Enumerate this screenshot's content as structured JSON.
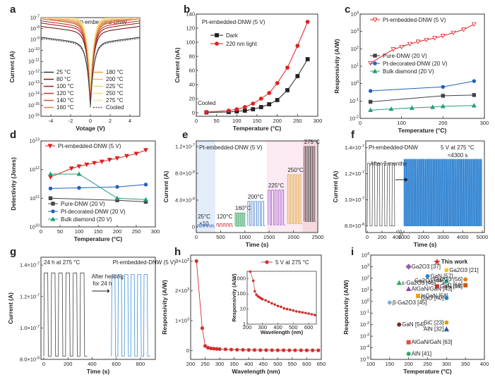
{
  "figure": {
    "panel_labels": [
      "a",
      "b",
      "c",
      "d",
      "e",
      "f",
      "g",
      "h",
      "i"
    ]
  },
  "chart_data": [
    {
      "panel": "a",
      "type": "line",
      "title": "Pt-embedded-DNW",
      "xlabel": "Votage (V)",
      "ylabel": "Current (A)",
      "xlim": [
        -5,
        5
      ],
      "ylim_log10": [
        -16,
        -7
      ],
      "x_ticks": [
        "-4",
        "-2",
        "0",
        "2",
        "4"
      ],
      "y_ticks": [
        "10^-16",
        "10^-15",
        "10^-14",
        "10^-13",
        "10^-12",
        "10^-11",
        "10^-10",
        "10^-9",
        "10^-8",
        "10^-7"
      ],
      "series": [
        {
          "name": "25 °C",
          "color": "#333333",
          "plateau_log10": -9.4,
          "dip_log10": -15.0
        },
        {
          "name": "80 °C",
          "color": "#7a1a1a",
          "plateau_log10": -8.4,
          "dip_log10": -14.5
        },
        {
          "name": "100 °C",
          "color": "#a52020",
          "plateau_log10": -8.1,
          "dip_log10": -14.3
        },
        {
          "name": "120 °C",
          "color": "#c0392b",
          "plateau_log10": -7.9,
          "dip_log10": -14.1
        },
        {
          "name": "140 °C",
          "color": "#d65a3a",
          "plateau_log10": -7.7,
          "dip_log10": -13.9
        },
        {
          "name": "160 °C",
          "color": "#e07a40",
          "plateau_log10": -7.6,
          "dip_log10": -13.8
        },
        {
          "name": "180 °C",
          "color": "#e89a4a",
          "plateau_log10": -7.5,
          "dip_log10": -13.6
        },
        {
          "name": "200 °C",
          "color": "#efb85a",
          "plateau_log10": -7.4,
          "dip_log10": -13.4
        },
        {
          "name": "225 °C",
          "color": "#f4cd6a",
          "plateau_log10": -7.3,
          "dip_log10": -13.2
        },
        {
          "name": "250 °C",
          "color": "#f7dc82",
          "plateau_log10": -7.2,
          "dip_log10": -13.0
        },
        {
          "name": "275 °C",
          "color": "#f9e79f",
          "plateau_log10": -7.1,
          "dip_log10": -12.8
        },
        {
          "name": "Cooled",
          "color": "#555555",
          "plateau_log10": -9.5,
          "dip_log10": -15.2,
          "dashed": true
        }
      ]
    },
    {
      "panel": "b",
      "type": "line",
      "title": "Pt-embedded-DNW (5 V)",
      "xlabel": "Temperature (°C)",
      "ylabel": "Current (nA)",
      "xlim": [
        0,
        300
      ],
      "ylim": [
        -5,
        140
      ],
      "x_ticks": [
        "0",
        "50",
        "100",
        "150",
        "200",
        "250",
        "300"
      ],
      "y_ticks": [
        "0",
        "20",
        "40",
        "60",
        "80",
        "100",
        "120",
        "140"
      ],
      "annotation": "Cooled",
      "series": [
        {
          "name": "Dark",
          "color": "#222222",
          "marker": "square",
          "x": [
            25,
            80,
            100,
            120,
            140,
            160,
            180,
            200,
            225,
            250,
            275
          ],
          "y": [
            0.5,
            1,
            2,
            3,
            5,
            8,
            12,
            18,
            32,
            52,
            76
          ]
        },
        {
          "name": "220 nm light",
          "color": "#e02020",
          "marker": "circle",
          "x": [
            25,
            80,
            100,
            120,
            140,
            160,
            180,
            200,
            225,
            250,
            275
          ],
          "y": [
            1,
            3,
            5,
            8,
            13,
            20,
            28,
            42,
            64,
            95,
            129
          ]
        }
      ]
    },
    {
      "panel": "c",
      "type": "line",
      "xlabel": "Temperature (°C)",
      "ylabel": "Responsivity (A/W)",
      "xlim": [
        0,
        300
      ],
      "ylim_log10": [
        -2,
        4
      ],
      "x_ticks": [
        "0",
        "100",
        "200",
        "300"
      ],
      "y_ticks": [
        "10^-2",
        "10^-1",
        "10^0",
        "10^1",
        "10^2",
        "10^3",
        "10^4"
      ],
      "series": [
        {
          "name": "Pt-embedded-DNW (5 V)",
          "color": "#e02020",
          "marker": "triangle-down",
          "x": [
            25,
            80,
            100,
            120,
            140,
            160,
            180,
            200,
            225,
            250,
            275
          ],
          "y": [
            15,
            95,
            130,
            190,
            260,
            330,
            420,
            560,
            850,
            1300,
            2600
          ]
        },
        {
          "name": "Pure-DNW (20 V)",
          "color": "#444444",
          "marker": "square",
          "x": [
            25,
            200,
            275
          ],
          "y": [
            0.09,
            0.2,
            0.22
          ]
        },
        {
          "name": "Pt-decorated-DNW (20 V)",
          "color": "#2060c0",
          "marker": "circle",
          "x": [
            25,
            200,
            275
          ],
          "y": [
            0.38,
            0.65,
            1.4
          ]
        },
        {
          "name": "Bulk diamond (20 V)",
          "color": "#20a070",
          "marker": "triangle-up",
          "x": [
            25,
            75,
            125,
            175,
            200,
            275
          ],
          "y": [
            0.03,
            0.035,
            0.04,
            0.045,
            0.05,
            0.055
          ]
        }
      ]
    },
    {
      "panel": "d",
      "type": "line",
      "xlabel": "Temperature (°C)",
      "ylabel": "Detectivity (Jones)",
      "xlim": [
        0,
        300
      ],
      "ylim_log10": [
        10,
        13
      ],
      "x_ticks": [
        "0",
        "50",
        "100",
        "150",
        "200",
        "250",
        "300"
      ],
      "y_ticks": [
        "10^10",
        "10^11",
        "10^12",
        "10^13"
      ],
      "series": [
        {
          "name": "Pt-embedded-DNW (5 V)",
          "color": "#e02020",
          "marker": "triangle-down",
          "x": [
            25,
            80,
            100,
            120,
            140,
            160,
            180,
            200,
            225,
            250,
            275
          ],
          "y": [
            550000000000.0,
            1100000000000.0,
            1300000000000.0,
            1500000000000.0,
            1700000000000.0,
            1900000000000.0,
            2200000000000.0,
            2500000000000.0,
            3000000000000.0,
            3600000000000.0,
            4800000000000.0
          ]
        },
        {
          "name": "Pure-DNW (20 V)",
          "color": "#444444",
          "marker": "square",
          "x": [
            25,
            200,
            275
          ],
          "y": [
            100000000000.0,
            85000000000.0,
            75000000000.0
          ]
        },
        {
          "name": "Pt-decorated-DNW (20 V)",
          "color": "#2060c0",
          "marker": "circle",
          "x": [
            25,
            100,
            200,
            275
          ],
          "y": [
            220000000000.0,
            230000000000.0,
            250000000000.0,
            300000000000.0
          ]
        },
        {
          "name": "Bulk diamond (20 V)",
          "color": "#20a070",
          "marker": "triangle-up",
          "x": [
            25,
            100,
            200,
            275
          ],
          "y": [
            700000000000.0,
            700000000000.0,
            100000000000.0,
            90000000000.0
          ]
        }
      ]
    },
    {
      "panel": "e",
      "type": "line",
      "title": "Pt-embedded-DNW (5 V)",
      "xlabel": "Time (s)",
      "ylabel": "Current (A)",
      "xlim": [
        0,
        2500
      ],
      "ylim": [
        0,
        1.2e-07
      ],
      "x_ticks": [
        "0",
        "500",
        "1000",
        "1500",
        "2000",
        "2500"
      ],
      "y_ticks": [
        "0",
        "4.0×10^-8",
        "8.0×10^-8",
        "1.2×10^-7"
      ],
      "multiplier_label": "×10",
      "segments": [
        {
          "label": "25°C",
          "t0": 30,
          "t1": 380,
          "base": 0,
          "on": 3e-09,
          "color": "#3366cc",
          "bg": "#e3ecf9"
        },
        {
          "label": "120°C",
          "t0": 420,
          "t1": 760,
          "base": 1e-09,
          "on": 5e-09,
          "color": "#d04040",
          "bg": "#ffffff"
        },
        {
          "label": "160°C",
          "t0": 800,
          "t1": 1020,
          "base": 1e-09,
          "on": 2.1e-08,
          "color": "#2e9e5e",
          "bg": "#ffffff"
        },
        {
          "label": "200°C",
          "t0": 1060,
          "t1": 1420,
          "base": 2e-09,
          "on": 3.8e-08,
          "color": "#3a78d0",
          "bg": "#ffffff"
        },
        {
          "label": "225°C",
          "t0": 1480,
          "t1": 1830,
          "base": 3e-09,
          "on": 5.5e-08,
          "color": "#9c4ad0",
          "bg": "#fbeaf2"
        },
        {
          "label": "250°C",
          "t0": 1880,
          "t1": 2180,
          "base": 5e-09,
          "on": 7.8e-08,
          "color": "#e0a020",
          "bg": "#fbeaf2"
        },
        {
          "label": "275°C",
          "t0": 2220,
          "t1": 2460,
          "base": 8e-09,
          "on": 1.2e-07,
          "color": "#444444",
          "bg": "#f7d8dd"
        }
      ]
    },
    {
      "panel": "f",
      "type": "line",
      "title": "Pt-embedded-DNW",
      "xlabel": "Time (s)",
      "ylabel": "Current (A)",
      "ylim": [
        7.5e-08,
        1.45e-07
      ],
      "x_ticks": [
        "0",
        "200",
        "400",
        "1000",
        "2000",
        "3000",
        "4000",
        "5000"
      ],
      "y_ticks": [
        "8.0×10^-8",
        "1.0×10^-7",
        "1.2×10^-7",
        "1.4×10^-7"
      ],
      "annotations": [
        "5 V at 275 °C",
        "≈4300 s",
        "After 3 months"
      ],
      "series": [
        {
          "name": "before",
          "color": "#444444",
          "x_range": [
            0,
            400
          ],
          "low": 8e-08,
          "high": 1.28e-07,
          "cycles": 6
        },
        {
          "name": "long-term",
          "color": "#2a7fd0",
          "x_range": [
            1000,
            5000
          ],
          "low": 8e-08,
          "high": 1.31e-07,
          "cycles": 70
        }
      ]
    },
    {
      "panel": "g",
      "type": "line",
      "title": "Pt-embedded-DNW (5 V)",
      "xlabel": "Time (s)",
      "ylabel": "Current (A)",
      "ylim": [
        8e-08,
        1.45e-07
      ],
      "x_ticks": [
        "0",
        "200",
        "400",
        "600",
        "800"
      ],
      "y_ticks": [
        "8.0×10^-8",
        "1.0×10^-7",
        "1.2×10^-7",
        "1.4×10^-7"
      ],
      "annotations": [
        "24 h at 275 °C",
        "After heating for 24 h"
      ],
      "series": [
        {
          "name": "24 h at 275 °C",
          "color": "#444444",
          "x_range": [
            0,
            360
          ],
          "low": 8.2e-08,
          "high": 1.35e-07,
          "cycles": 6
        },
        {
          "name": "After heating",
          "color": "#3a8fd8",
          "x_range": [
            560,
            880
          ],
          "low": 8.2e-08,
          "high": 1.34e-07,
          "cycles": 6
        }
      ]
    },
    {
      "panel": "h",
      "type": "scatter",
      "xlabel": "Wavelength (nm)",
      "ylabel": "Responsivity (A/W)",
      "xlim": [
        200,
        650
      ],
      "ylim": [
        -300,
        3200
      ],
      "x_ticks": [
        "200",
        "250",
        "300",
        "350",
        "400",
        "450",
        "500",
        "550",
        "600",
        "650"
      ],
      "y_ticks": [
        "0",
        "1×10^3",
        "2×10^3",
        "3×10^3"
      ],
      "legend": "5 V at 275 °C",
      "color": "#d03030",
      "x": [
        220,
        240,
        250,
        260,
        270,
        280,
        290,
        300,
        320,
        340,
        360,
        380,
        400,
        420,
        440,
        460,
        480,
        500,
        520,
        540,
        560,
        580,
        600,
        620,
        640
      ],
      "y": [
        3000,
        750,
        150,
        90,
        70,
        60,
        52,
        45,
        38,
        30,
        24,
        20,
        16,
        14,
        11,
        10,
        9,
        8,
        7,
        6.5,
        6,
        5.5,
        5,
        4.5,
        4
      ],
      "inset": {
        "xlabel": "Wavelength (nm)",
        "ylabel": "Responsivity (A/W)",
        "x_ticks": [
          "200",
          "300",
          "400",
          "500",
          "600"
        ],
        "y_ticks": [
          "1",
          "10",
          "100",
          "1000"
        ],
        "ylim_log10": [
          0,
          3.5
        ],
        "xlim": [
          200,
          650
        ]
      }
    },
    {
      "panel": "i",
      "type": "scatter",
      "xlabel": "Temperature (°C)",
      "ylabel": "Responsivity (A/W)",
      "xlim": [
        100,
        400
      ],
      "ylim_log10": [
        -5,
        4
      ],
      "x_ticks": [
        "100",
        "150",
        "200",
        "250",
        "300",
        "350",
        "400"
      ],
      "y_ticks": [
        "10^-5",
        "10^-4",
        "10^-3",
        "10^-2",
        "10^-1",
        "10^0",
        "10^1",
        "10^2",
        "10^3",
        "10^4"
      ],
      "points": [
        {
          "label": "This work",
          "x": 275,
          "y": 2600,
          "color": "#e02020",
          "marker": "star"
        },
        {
          "label": "Ga2O3 [37]",
          "x": 200,
          "y": 1000,
          "color": "#9b59b6",
          "marker": "diamond"
        },
        {
          "label": "Ga2O3 [21]",
          "x": 300,
          "y": 500,
          "color": "#f1c40f",
          "marker": "circle"
        },
        {
          "label": "GaN [57]",
          "x": 250,
          "y": 150,
          "color": "#2e86c1",
          "marker": "circle"
        },
        {
          "label": "ε-Ga2O3 [46]",
          "x": 175,
          "y": 40,
          "color": "#27ae60",
          "marker": "triangle"
        },
        {
          "label": "Ga2O3 [44]",
          "x": 300,
          "y": 60,
          "color": "#16a085",
          "marker": "triangle"
        },
        {
          "label": "Ga2O3 [56]",
          "x": 350,
          "y": 80,
          "color": "#e67e22",
          "marker": "circle"
        },
        {
          "label": "AlGaN/GaN [43]",
          "x": 200,
          "y": 12,
          "color": "#8e44ad",
          "marker": "triangle"
        },
        {
          "label": "GaN [55]",
          "x": 275,
          "y": 20,
          "color": "#c0392b",
          "marker": "square"
        },
        {
          "label": "SiC [59]",
          "x": 350,
          "y": 25,
          "color": "#d35400",
          "marker": "square"
        },
        {
          "label": "InGaN [58]",
          "x": 225,
          "y": 3,
          "color": "#f39c12",
          "marker": "square"
        },
        {
          "label": "GaO [40]",
          "x": 300,
          "y": 2,
          "color": "#2980b9",
          "marker": "circle"
        },
        {
          "label": "β-Ga2O3 [45]",
          "x": 150,
          "y": 0.8,
          "color": "#7fb3d5",
          "marker": "circle"
        },
        {
          "label": "GaN [54]",
          "x": 175,
          "y": 0.01,
          "color": "#6e2c2c",
          "marker": "circle"
        },
        {
          "label": "SiC [23]",
          "x": 300,
          "y": 0.015,
          "color": "#d4a017",
          "marker": "circle"
        },
        {
          "label": "AlN [32]",
          "x": 300,
          "y": 0.004,
          "color": "#2c5aa0",
          "marker": "triangle"
        },
        {
          "label": "AlGaN/GaN [63]",
          "x": 200,
          "y": 0.0003,
          "color": "#e74c3c",
          "marker": "square"
        },
        {
          "label": "AlN [41]",
          "x": 200,
          "y": 3e-05,
          "color": "#27ae60",
          "marker": "circle"
        }
      ]
    }
  ]
}
